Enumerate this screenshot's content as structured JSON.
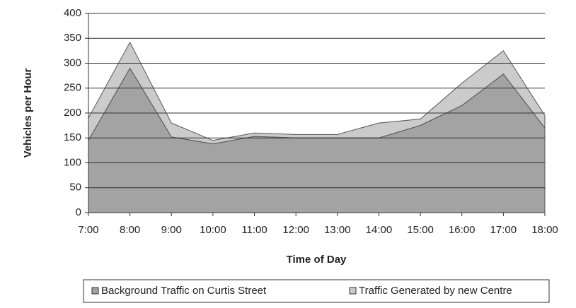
{
  "chart_data": {
    "type": "stacked_area",
    "x_label": "Time of Day",
    "y_label": "Vehicles per Hour",
    "categories": [
      "7:00",
      "8:00",
      "9:00",
      "10:00",
      "11:00",
      "12:00",
      "13:00",
      "14:00",
      "15:00",
      "16:00",
      "17:00",
      "18:00"
    ],
    "series": [
      {
        "name": "Background Traffic on Curtis Street",
        "color": "#a3a3a3",
        "values": [
          145,
          290,
          152,
          138,
          153,
          150,
          150,
          150,
          175,
          215,
          278,
          170
        ]
      },
      {
        "name": "Traffic Generated by new Centre",
        "color": "#cbcbcb",
        "values": [
          45,
          52,
          28,
          7,
          7,
          7,
          7,
          30,
          13,
          45,
          47,
          25
        ]
      }
    ],
    "ylim": [
      0,
      400
    ],
    "yticks": [
      0,
      50,
      100,
      150,
      200,
      250,
      300,
      350,
      400
    ],
    "grid": true,
    "legend": "bottom"
  }
}
